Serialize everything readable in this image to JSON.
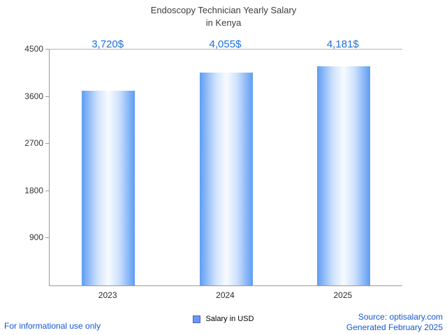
{
  "title": {
    "line1": "Endoscopy Technician Yearly Salary",
    "line2": "in Kenya"
  },
  "chart_data": {
    "type": "bar",
    "title": "Endoscopy Technician Yearly Salary in Kenya",
    "categories": [
      "2023",
      "2024",
      "2025"
    ],
    "values": [
      3720,
      4055,
      4181
    ],
    "value_labels": [
      "3,720$",
      "4,055$",
      "4,181$"
    ],
    "series_name": "Salary in USD",
    "ylim": [
      0,
      4500
    ],
    "yticks": [
      900,
      1800,
      2700,
      3600,
      4500
    ],
    "grid": "top-line-only",
    "legend_position": "bottom-center",
    "colors": {
      "bar_edge": "#5e9cf3",
      "bar_mid": "#cfe2fc",
      "bar_center": "#f7fbff",
      "value_label": "#1b6fd8",
      "link_text": "#1556d6",
      "axis": "#9a9a9a"
    }
  },
  "legend": {
    "label": "Salary in USD"
  },
  "footer": {
    "left": "For informational use only",
    "source": "Source: optisalary.com",
    "generated": "Generated February 2025"
  }
}
